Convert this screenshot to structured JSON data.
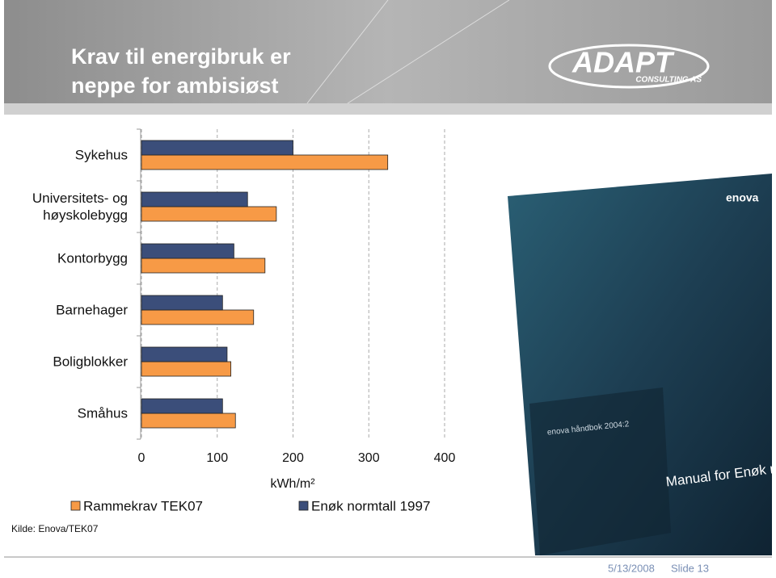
{
  "header": {
    "title": "Krav til energibruk er neppe for ambisiøst",
    "logo": "ADAPT",
    "logo_sub": "CONSULTING AS"
  },
  "chart_data": {
    "type": "hbar",
    "x_label": "kWh/m²",
    "categories": [
      "Sykehus",
      "Universitets- og høyskolebygg",
      "Kontorbygg",
      "Barnehager",
      "Boligblokker",
      "Småhus"
    ],
    "series": [
      {
        "name": "Rammekrav TEK07",
        "color": "#f79a46",
        "values": [
          325,
          178,
          163,
          148,
          118,
          124
        ]
      },
      {
        "name": "Enøk normtall 1997",
        "color": "#3b4e7a",
        "values": [
          200,
          140,
          122,
          107,
          113,
          107
        ]
      }
    ],
    "xlim": [
      0,
      400
    ],
    "xticks": [
      0,
      100,
      200,
      300,
      400
    ],
    "grid": true
  },
  "source": "Kilde: Enova/TEK07",
  "book": {
    "brand": "enova",
    "series_name": "enova håndbok 2004:2",
    "title": "Manual for Enøk normtall"
  },
  "footer": {
    "date": "5/13/2008",
    "slide": "Slide 13"
  }
}
